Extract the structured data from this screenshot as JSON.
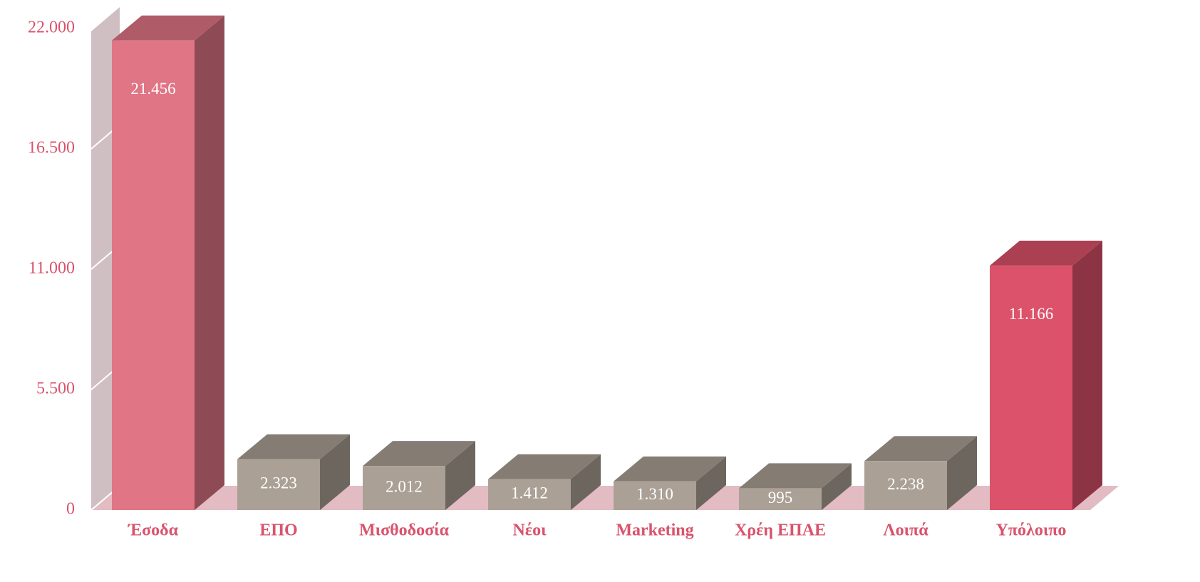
{
  "chart_data": {
    "type": "bar3d",
    "categories": [
      "Έσοδα",
      "ΕΠΟ",
      "Μισθοδοσία",
      "Νέοι",
      "Marketing",
      "Χρέη ΕΠΑΕ",
      "Λοιπά",
      "Υπόλοιπο"
    ],
    "values": [
      21456,
      2323,
      2012,
      1412,
      1310,
      995,
      2238,
      11166
    ],
    "value_labels": [
      "21.456",
      "2.323",
      "2.012",
      "1.412",
      "1.310",
      "995",
      "2.238",
      "11.166"
    ],
    "colors": [
      "#e07585",
      "#aaa095",
      "#aaa095",
      "#aaa095",
      "#aaa095",
      "#aaa095",
      "#aaa095",
      "#dc526a"
    ],
    "ylim": [
      0,
      22000
    ],
    "yticks": [
      0,
      {
        "value": 5500,
        "label": "5.500"
      },
      {
        "value": 11000,
        "label": "11.000"
      },
      {
        "value": 16500,
        "label": "16.500"
      },
      {
        "value": 22000,
        "label": "22.000"
      }
    ],
    "grid": true
  }
}
